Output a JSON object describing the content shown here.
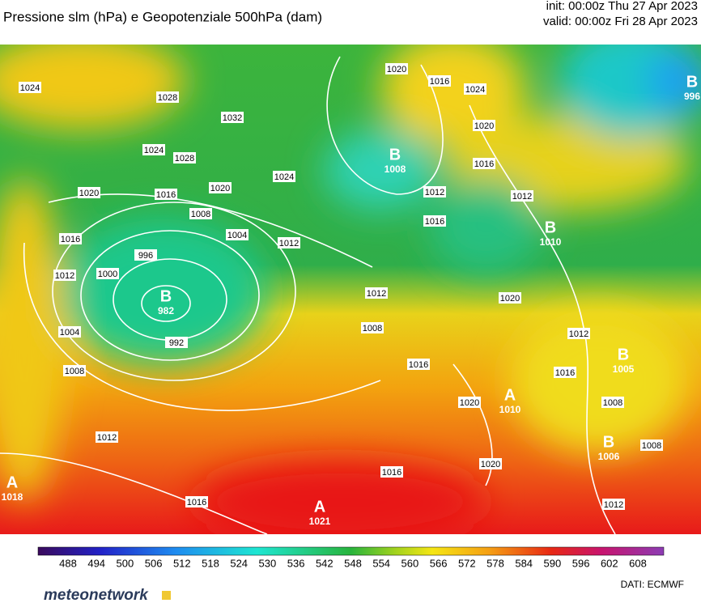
{
  "header": {
    "title": "Pressione slm (hPa) e Geopotenziale 500hPa (dam)",
    "init": "init: 00:00z Thu 27 Apr 2023",
    "valid": "valid: 00:00z Fri 28 Apr 2023"
  },
  "pressure_centers": [
    {
      "letter": "B",
      "value": "982"
    },
    {
      "letter": "B",
      "value": "1008"
    },
    {
      "letter": "B",
      "value": "996"
    },
    {
      "letter": "B",
      "value": "1010"
    },
    {
      "letter": "B",
      "value": "1005"
    },
    {
      "letter": "A",
      "value": "1010"
    },
    {
      "letter": "B",
      "value": "1006"
    },
    {
      "letter": "A",
      "value": "1018"
    },
    {
      "letter": "A",
      "value": "1021"
    }
  ],
  "isobar_labels": [
    "1024",
    "1028",
    "1024",
    "1028",
    "1032",
    "1020",
    "1016",
    "1020",
    "1008",
    "1004",
    "1012",
    "1016",
    "1012",
    "1000",
    "996",
    "1004",
    "992",
    "1008",
    "1012",
    "1016",
    "1020",
    "1016",
    "1024",
    "1020",
    "1016",
    "1012",
    "1012",
    "1016",
    "1024",
    "1012",
    "1008",
    "1020",
    "1016",
    "1012",
    "1016",
    "1020",
    "1020",
    "1016",
    "1008",
    "1008",
    "1012"
  ],
  "colorbar": {
    "ticks": [
      488,
      494,
      500,
      506,
      512,
      518,
      524,
      530,
      536,
      542,
      548,
      554,
      560,
      566,
      572,
      578,
      584,
      590,
      596,
      602,
      608
    ]
  },
  "footer": {
    "brand": "meteonetwork",
    "source": "DATI: ECMWF"
  }
}
